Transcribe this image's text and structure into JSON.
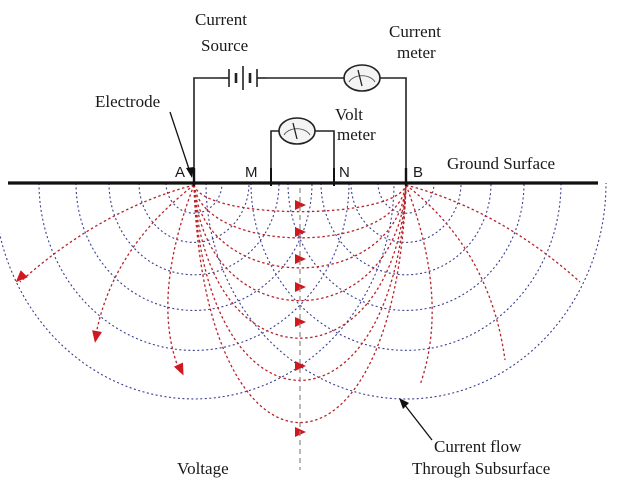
{
  "diagram": {
    "labels": {
      "current_source": [
        "Current",
        "Source"
      ],
      "current_meter": [
        "Current",
        "meter"
      ],
      "electrode": "Electrode",
      "volt_meter": [
        "Volt",
        "meter"
      ],
      "ground_surface": "Ground Surface",
      "voltage": "Voltage",
      "current_flow": [
        "Current flow",
        "Through Subsurface"
      ]
    },
    "electrodes": [
      {
        "id": "A",
        "label": "A"
      },
      {
        "id": "M",
        "label": "M"
      },
      {
        "id": "N",
        "label": "N"
      },
      {
        "id": "B",
        "label": "B"
      }
    ],
    "colors": {
      "current_lines": "#b8232a",
      "equipotential_lines": "#3a3f8f",
      "arrows": "#d0181f",
      "wire": "#222222"
    }
  }
}
